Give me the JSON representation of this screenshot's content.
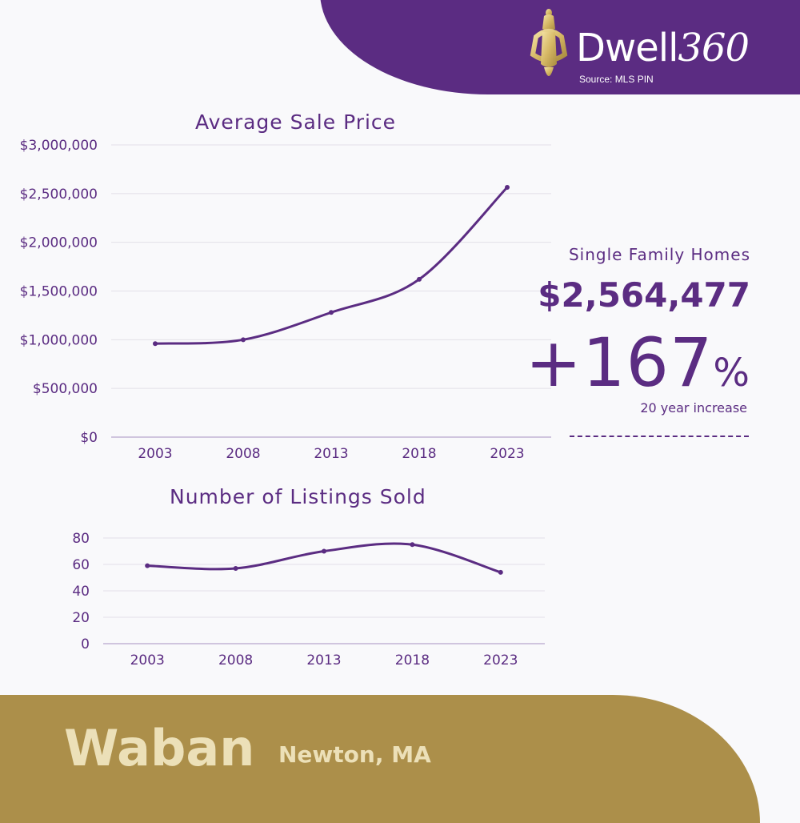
{
  "brand": {
    "logo_text": "Dwell",
    "logo_number": "360",
    "source": "Source: MLS PIN"
  },
  "summary": {
    "subtitle": "Single Family Homes",
    "price": "$2,564,477",
    "change": "+167",
    "change_unit": "%",
    "change_caption": "20 year increase"
  },
  "location": {
    "neighborhood": "Waban",
    "city": "Newton, MA"
  },
  "colors": {
    "purple": "#5b2c82",
    "gold": "#ac8f4a",
    "cream": "#ece0b8"
  },
  "chart_data": [
    {
      "type": "line",
      "title": "Average Sale Price",
      "categories": [
        "2003",
        "2008",
        "2013",
        "2018",
        "2023"
      ],
      "series": [
        {
          "values": [
            960000,
            1000000,
            1280000,
            1620000,
            2564477
          ]
        }
      ],
      "ylim": [
        0,
        3000000
      ],
      "yticks": [
        0,
        500000,
        1000000,
        1500000,
        2000000,
        2500000,
        3000000
      ],
      "ytick_labels": [
        "$0",
        "$500,000",
        "$1,000,000",
        "$1,500,000",
        "$2,000,000",
        "$2,500,000",
        "$3,000,000"
      ],
      "grid": true,
      "smooth": true
    },
    {
      "type": "line",
      "title": "Number of Listings Sold",
      "categories": [
        "2003",
        "2008",
        "2013",
        "2018",
        "2023"
      ],
      "series": [
        {
          "values": [
            59,
            57,
            70,
            75,
            54
          ]
        }
      ],
      "ylim": [
        0,
        80
      ],
      "yticks": [
        0,
        20,
        40,
        60,
        80
      ],
      "ytick_labels": [
        "0",
        "20",
        "40",
        "60",
        "80"
      ],
      "grid": true,
      "smooth": true
    }
  ]
}
